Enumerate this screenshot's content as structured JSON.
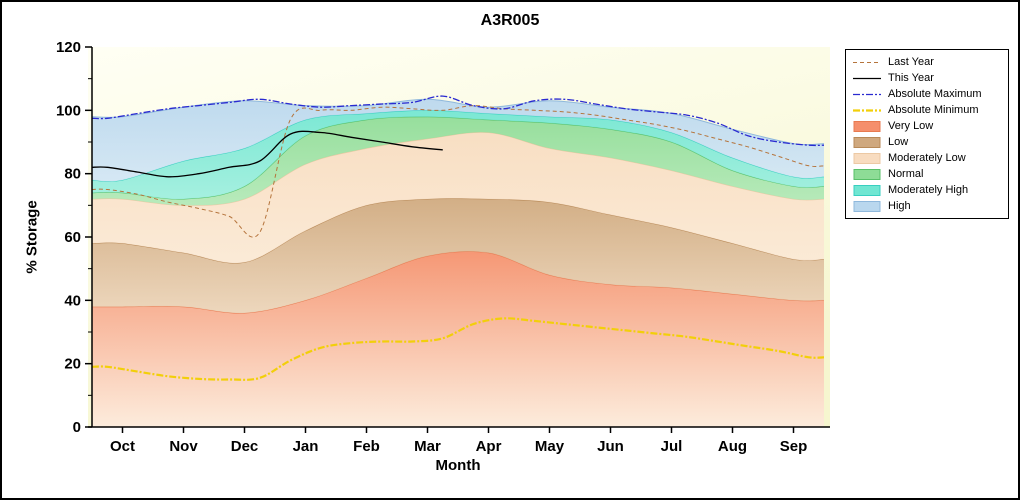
{
  "chart_data": {
    "type": "area",
    "title": "A3R005",
    "xlabel": "Month",
    "ylabel": "% Storage",
    "ylim": [
      0,
      120
    ],
    "yticks": [
      0,
      20,
      40,
      60,
      80,
      100,
      120
    ],
    "categories": [
      "Oct",
      "Nov",
      "Dec",
      "Jan",
      "Feb",
      "Mar",
      "Apr",
      "May",
      "Jun",
      "Jul",
      "Aug",
      "Sep"
    ],
    "plot_background_top": "#fffff4",
    "plot_background_bottom": "#f6f6cf",
    "bands": [
      {
        "name": "Very Low",
        "fill_top": "#f58f6c",
        "fill_bottom": "#fdebdd",
        "edge": "#e87a50",
        "upper": [
          38,
          38,
          36,
          40,
          47,
          54,
          55,
          48,
          45,
          44,
          42,
          40
        ]
      },
      {
        "name": "Low",
        "fill_top": "#cfa87e",
        "fill_bottom": "#ecd4ba",
        "edge": "#b88a58",
        "upper": [
          58,
          55,
          52,
          62,
          70,
          72,
          72,
          71,
          67,
          63,
          58,
          53
        ]
      },
      {
        "name": "Moderately Low",
        "fill_top": "#f8dcc0",
        "fill_bottom": "#fbe9d6",
        "edge": "#ecc9a4",
        "upper": [
          72,
          70,
          72,
          83,
          88,
          91,
          93,
          88,
          85,
          81,
          76,
          72
        ]
      },
      {
        "name": "Normal",
        "fill_top": "#8edc96",
        "fill_bottom": "#b2e9b8",
        "edge": "#58c068",
        "upper": [
          74,
          72,
          76,
          92,
          97,
          98,
          97,
          96,
          94,
          90,
          81,
          76
        ]
      },
      {
        "name": "Moderately High",
        "fill_top": "#70e6d2",
        "fill_bottom": "#9eefdf",
        "edge": "#38cfc0",
        "upper": [
          78,
          84,
          88,
          97,
          99,
          100,
          99,
          98,
          97,
          93,
          85,
          79
        ]
      },
      {
        "name": "High",
        "fill_top": "#b9d7ee",
        "fill_bottom": "#d2e6f5",
        "edge": "#8fb8dc",
        "upper": [
          98,
          101,
          103,
          101.5,
          101.5,
          103.5,
          101,
          103,
          101,
          99,
          94,
          89.5
        ]
      }
    ],
    "lines": [
      {
        "name": "Last Year",
        "color": "#b5743c",
        "width": 1,
        "dash": "4 3",
        "values": [
          75,
          73.5,
          71,
          69,
          66.5,
          61.5,
          97,
          100,
          100,
          101,
          100.5,
          100,
          101.5,
          100.5,
          100,
          99.5,
          98.5,
          97,
          95.5,
          93.5,
          91,
          88.5,
          85.5,
          82.5
        ]
      },
      {
        "name": "This Year",
        "color": "#000000",
        "width": 1.3,
        "dash": "",
        "values": [
          82,
          80.5,
          79,
          80,
          82,
          84,
          92.5,
          93,
          91.5,
          90,
          88.5,
          87.5,
          null,
          null,
          null,
          null,
          null,
          null,
          null,
          null,
          null,
          null,
          null,
          null
        ]
      },
      {
        "name": "Absolute Maximum",
        "color": "#2a2ad0",
        "width": 1.3,
        "dash": "7 2 2 2",
        "values": [
          97.5,
          99,
          100.5,
          101.5,
          102.5,
          103.5,
          102,
          101,
          101.5,
          102,
          102.5,
          104.5,
          101.5,
          100.5,
          103,
          103.5,
          102,
          100.5,
          99.5,
          98.5,
          96,
          92,
          90,
          89
        ]
      },
      {
        "name": "Absolute Minimum",
        "color": "#f2cf0a",
        "width": 2.2,
        "dash": "7 2 2 2",
        "values": [
          19,
          17.5,
          16,
          15.2,
          15,
          15.5,
          21,
          25,
          26.5,
          27,
          27,
          28,
          32.5,
          34.3,
          33.5,
          32.5,
          31.5,
          30.5,
          29.5,
          28.5,
          27,
          25.5,
          24,
          22
        ]
      }
    ],
    "legend": [
      {
        "label": "Last Year",
        "type": "line",
        "color": "#b5743c",
        "dash": "4 3",
        "width": 1
      },
      {
        "label": "This Year",
        "type": "line",
        "color": "#000000",
        "dash": "",
        "width": 1.3
      },
      {
        "label": "Absolute Maximum",
        "type": "line",
        "color": "#2a2ad0",
        "dash": "7 2 2 2",
        "width": 1.3
      },
      {
        "label": "Absolute Minimum",
        "type": "line",
        "color": "#f2cf0a",
        "dash": "7 2 2 2",
        "width": 2.2
      },
      {
        "label": "Very Low",
        "type": "box",
        "color": "#f58f6c",
        "edge": "#e87a50"
      },
      {
        "label": "Low",
        "type": "box",
        "color": "#cfa87e",
        "edge": "#b88a58"
      },
      {
        "label": "Moderately Low",
        "type": "box",
        "color": "#f8dcc0",
        "edge": "#ecc9a4"
      },
      {
        "label": "Normal",
        "type": "box",
        "color": "#8edc96",
        "edge": "#58c068"
      },
      {
        "label": "Moderately High",
        "type": "box",
        "color": "#70e6d2",
        "edge": "#38cfc0"
      },
      {
        "label": "High",
        "type": "box",
        "color": "#b9d7ee",
        "edge": "#8fb8dc"
      }
    ]
  }
}
